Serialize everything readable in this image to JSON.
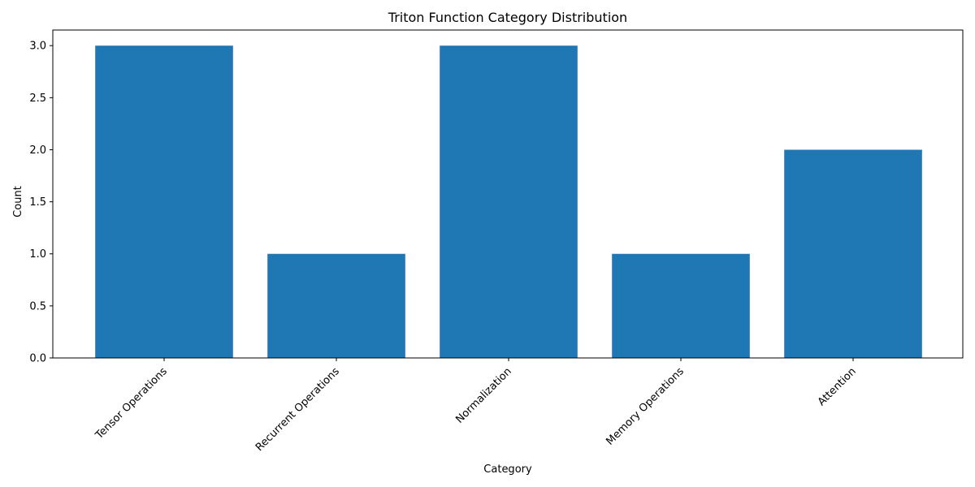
{
  "chart_data": {
    "type": "bar",
    "title": "Triton Function Category Distribution",
    "xlabel": "Category",
    "ylabel": "Count",
    "categories": [
      "Tensor Operations",
      "Recurrent Operations",
      "Normalization",
      "Memory Operations",
      "Attention"
    ],
    "values": [
      3,
      1,
      3,
      1,
      2
    ],
    "ylim": [
      0,
      3.15
    ],
    "yticks": [
      0.0,
      0.5,
      1.0,
      1.5,
      2.0,
      2.5,
      3.0
    ],
    "ytick_labels": [
      "0.0",
      "0.5",
      "1.0",
      "1.5",
      "2.0",
      "2.5",
      "3.0"
    ],
    "bar_color": "#1f77b4",
    "grid": false,
    "legend": "none"
  }
}
